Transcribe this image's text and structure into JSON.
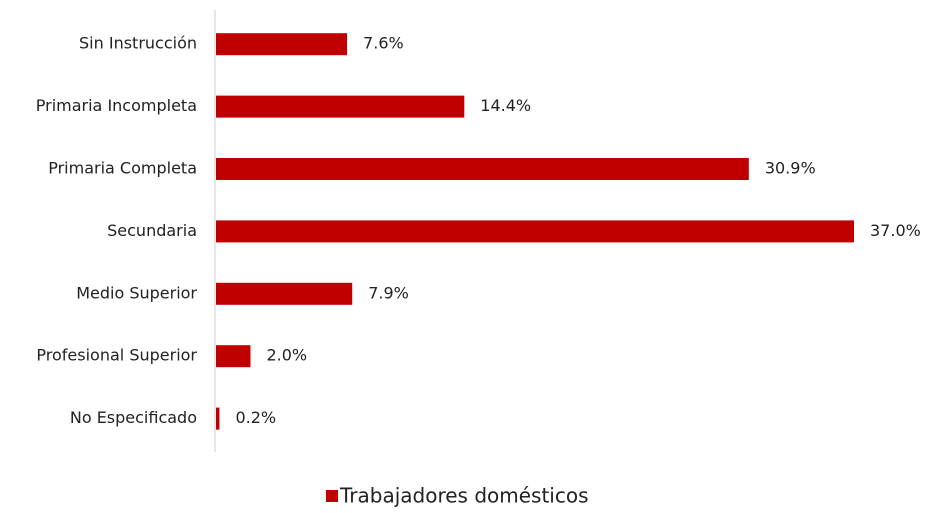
{
  "chart_data": {
    "type": "bar",
    "orientation": "horizontal",
    "categories": [
      "Sin Instrucción",
      "Primaria Incompleta",
      "Primaria Completa",
      "Secundaria",
      "Medio Superior",
      "Profesional Superior",
      "No Especificado"
    ],
    "series": [
      {
        "name": "Trabajadores domésticos",
        "color": "#c00000",
        "values": [
          7.6,
          14.4,
          30.9,
          37.0,
          7.9,
          2.0,
          0.2
        ],
        "value_labels": [
          "7.6%",
          "14.4%",
          "30.9%",
          "37.0%",
          "7.9%",
          "2.0%",
          "0.2%"
        ]
      }
    ],
    "legend": "bottom"
  }
}
